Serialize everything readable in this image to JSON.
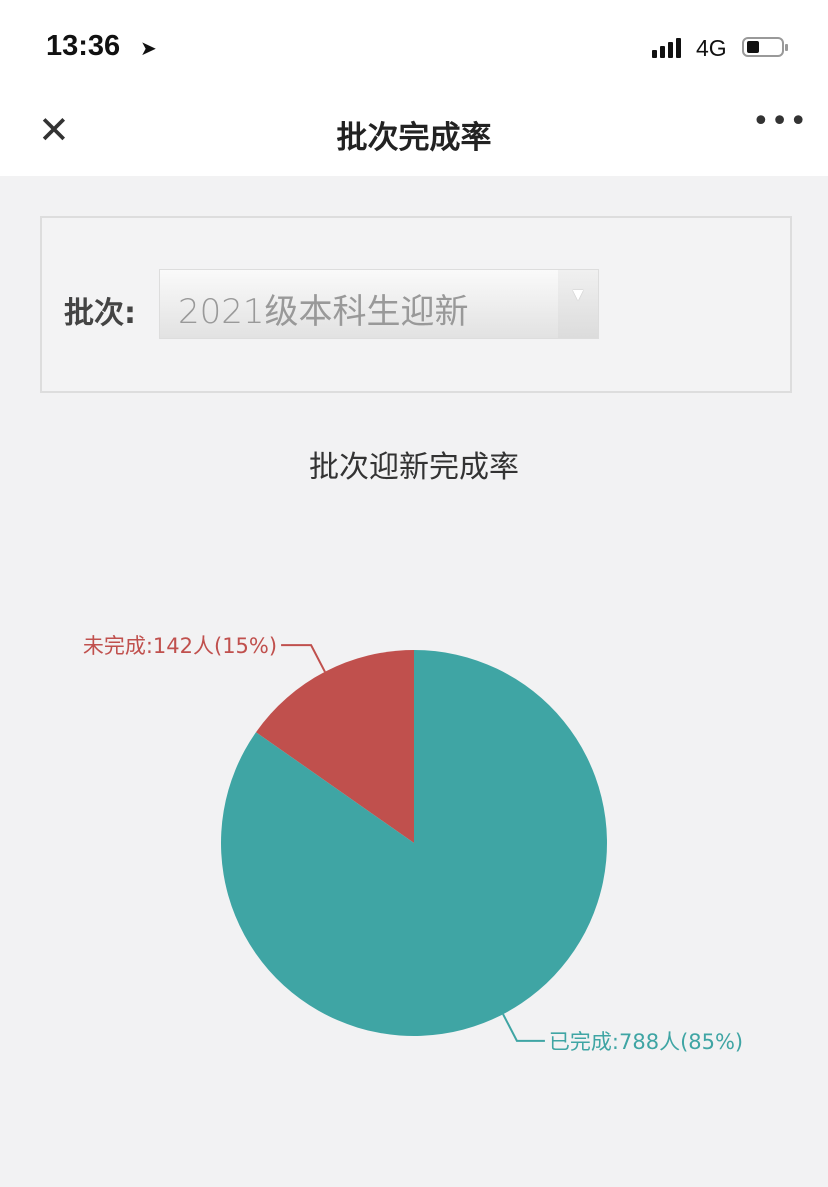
{
  "status_bar": {
    "time": "13:36",
    "network": "4G",
    "location_icon": "location-arrow-icon",
    "battery_icon": "battery-icon",
    "signal_icon": "signal-icon"
  },
  "nav": {
    "title": "批次完成率",
    "close_icon": "close-icon",
    "more_icon": "more-icon"
  },
  "filter": {
    "label": "批次:",
    "selected": "2021级本科生迎新"
  },
  "chart_data": {
    "type": "pie",
    "title": "批次迎新完成率",
    "slices": [
      {
        "name": "未完成",
        "value": 142,
        "percent": 15,
        "label": "未完成:142人(15%)",
        "color": "#c0504d"
      },
      {
        "name": "已完成",
        "value": 788,
        "percent": 85,
        "label": "已完成:788人(85%)",
        "color": "#3fa5a4"
      }
    ]
  }
}
